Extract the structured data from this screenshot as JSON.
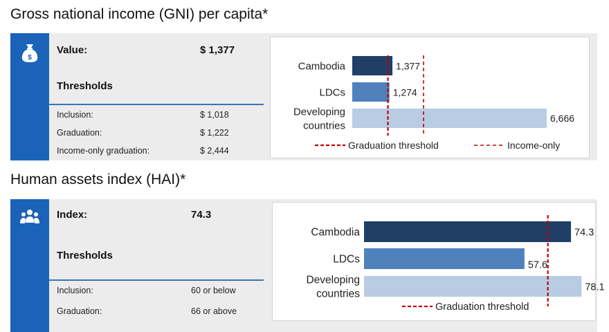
{
  "gni": {
    "title": "Gross national income (GNI) per capita*",
    "icon": "money-bag-icon",
    "value_label": "Value:",
    "value": "$ 1,377",
    "thresholds_label": "Thresholds",
    "thresholds": [
      {
        "label": "Inclusion:",
        "value": "$ 1,018"
      },
      {
        "label": "Graduation:",
        "value": "$ 1,222"
      },
      {
        "label": "Income-only graduation:",
        "value": "$ 2,444"
      }
    ]
  },
  "hai": {
    "title": "Human assets index (HAI)*",
    "icon": "people-group-icon",
    "value_label": "Index:",
    "value": "74.3",
    "thresholds_label": "Thresholds",
    "thresholds": [
      {
        "label": "Inclusion:",
        "value": "60 or below"
      },
      {
        "label": "Graduation:",
        "value": "66 or above"
      }
    ]
  },
  "colors": {
    "accent": "#1a63b8",
    "panel_bg": "#ececec",
    "threshold_line": "#c00000",
    "bar_dark": "#213f66",
    "bar_mid": "#4f81bd",
    "bar_light": "#b8cce4"
  },
  "chart_data": [
    {
      "type": "bar",
      "orientation": "horizontal",
      "categories": [
        "Cambodia",
        "LDCs",
        "Developing countries"
      ],
      "category_lines": [
        [
          "Cambodia"
        ],
        [
          "LDCs"
        ],
        [
          "Developing",
          "countries"
        ]
      ],
      "values": [
        1377,
        1274,
        6666
      ],
      "value_labels": [
        "1,377",
        "1,274",
        "6,666"
      ],
      "bar_colors": [
        "#213f66",
        "#4f81bd",
        "#b8cce4"
      ],
      "thresholds": [
        {
          "name": "Graduation threshold",
          "value": 1222
        },
        {
          "name": "Income-only",
          "value": 2444
        }
      ],
      "xlim": [
        0,
        7900
      ],
      "legend_position": "bottom"
    },
    {
      "type": "bar",
      "orientation": "horizontal",
      "categories": [
        "Cambodia",
        "LDCs",
        "Developing countries"
      ],
      "category_lines": [
        [
          "Cambodia"
        ],
        [
          "LDCs"
        ],
        [
          "Developing",
          "countries"
        ]
      ],
      "values": [
        74.3,
        57.6,
        78.1
      ],
      "value_labels": [
        "74.3",
        "57.6",
        "78.1"
      ],
      "bar_colors": [
        "#213f66",
        "#4f81bd",
        "#b8cce4"
      ],
      "thresholds": [
        {
          "name": "Graduation threshold",
          "value": 66
        }
      ],
      "xlim": [
        0,
        80
      ],
      "legend_position": "bottom"
    }
  ]
}
